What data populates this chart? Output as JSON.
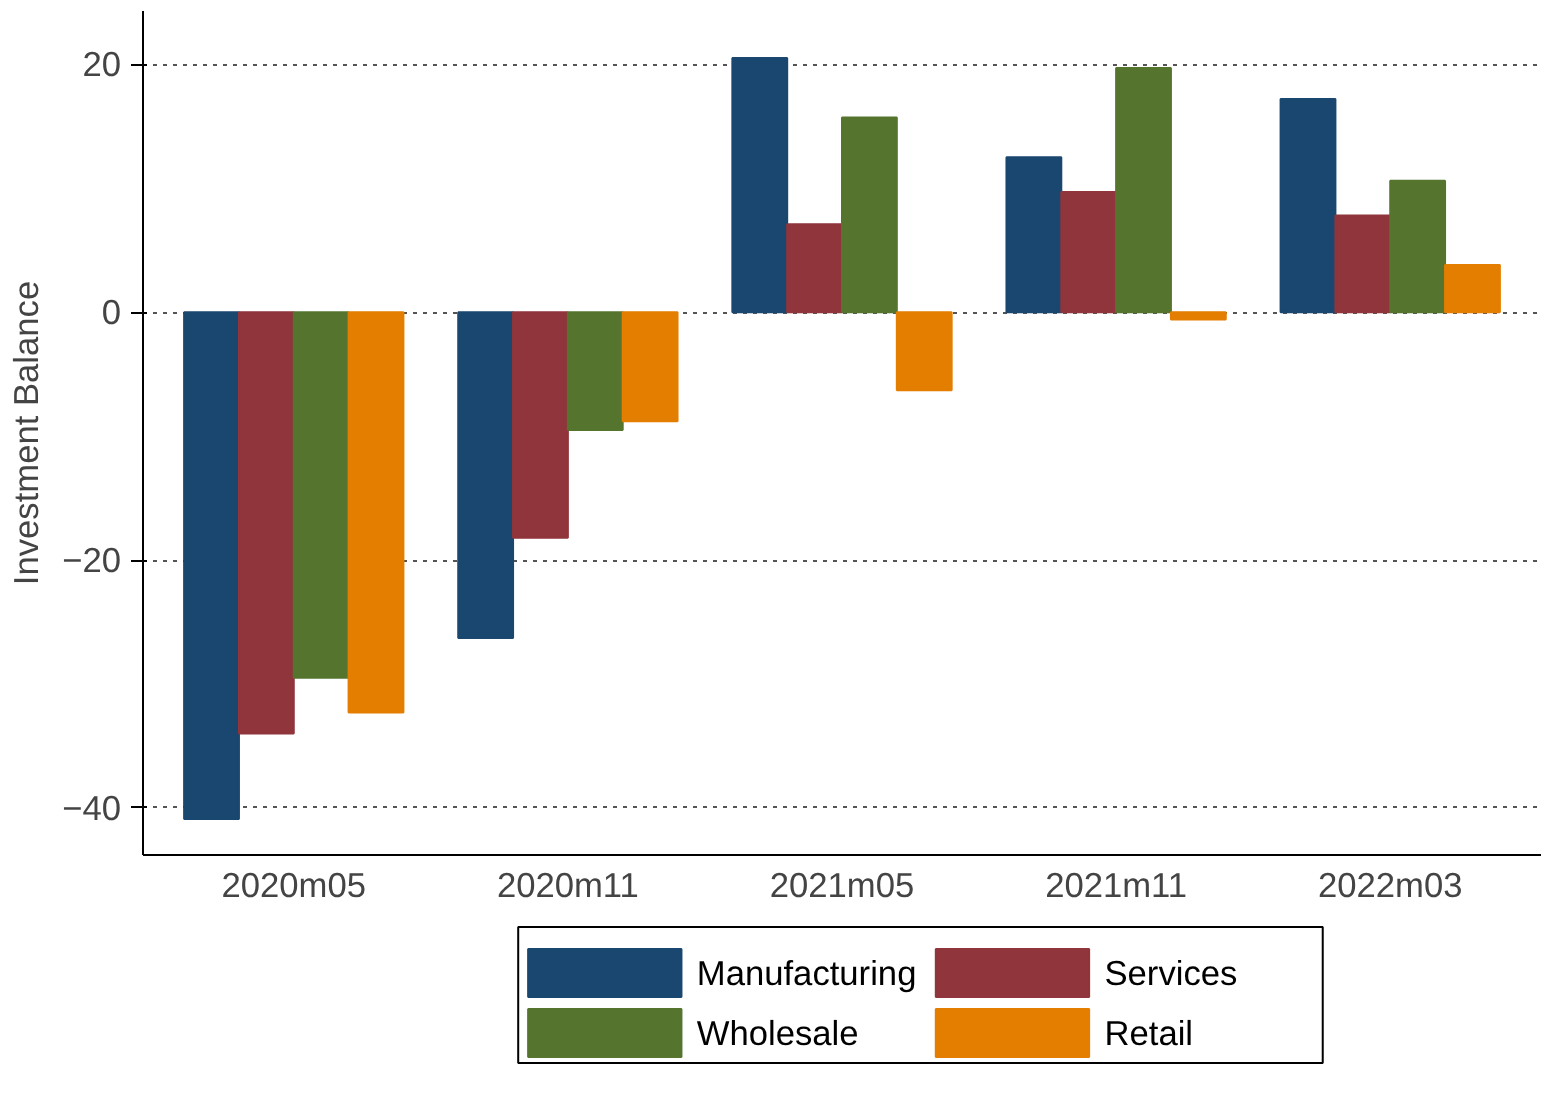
{
  "chart_data": {
    "type": "bar",
    "ylabel": "Investment Balance",
    "categories": [
      "2020m05",
      "2020m11",
      "2021m05",
      "2021m11",
      "2022m03"
    ],
    "series": [
      {
        "name": "Manufacturing",
        "color": "#1a476f",
        "values": [
          -40.9,
          -26.3,
          20.5,
          12.5,
          17.2
        ]
      },
      {
        "name": "Services",
        "color": "#90353b",
        "values": [
          -34.0,
          -18.2,
          7.1,
          9.7,
          7.8
        ]
      },
      {
        "name": "Wholesale",
        "color": "#55752f",
        "values": [
          -29.5,
          -9.5,
          15.7,
          19.7,
          10.6
        ]
      },
      {
        "name": "Retail",
        "color": "#e37e00",
        "values": [
          -32.3,
          -8.8,
          -6.3,
          -0.6,
          3.8
        ]
      }
    ],
    "ylim": [
      -43.8,
      24.3
    ],
    "yticks": [
      -40,
      -20,
      0,
      20
    ],
    "grid": "y",
    "legend": "bottom"
  }
}
